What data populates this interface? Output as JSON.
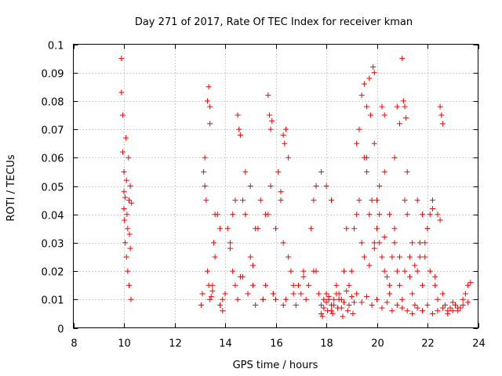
{
  "chart_data": {
    "type": "scatter",
    "title": "Day 271 of 2017, Rate Of TEC Index for receiver kman",
    "xlabel": "GPS time / hours",
    "ylabel": "ROTI / TECUs",
    "xlim": [
      8,
      24
    ],
    "ylim": [
      0,
      0.1
    ],
    "xticks": [
      "8",
      "10",
      "12",
      "14",
      "16",
      "18",
      "20",
      "22",
      "24"
    ],
    "yticks": [
      "0",
      "0.01",
      "0.02",
      "0.03",
      "0.04",
      "0.05",
      "0.06",
      "0.07",
      "0.08",
      "0.09",
      "0.1"
    ],
    "grid": true,
    "marker": "plus",
    "color": "#ff0000",
    "series": [
      {
        "x": [
          9.9,
          9.9,
          9.95,
          9.95,
          10,
          10,
          10,
          10.02,
          10.05,
          10.05,
          10.08,
          10.1,
          10.1,
          10.12,
          10.15,
          10.15,
          10.18,
          10.2,
          10.2,
          10.22,
          10.25,
          10.25,
          10.28,
          10.3,
          13.05,
          13.1,
          13.15,
          13.2,
          13.25,
          13.3,
          13.35,
          13.4,
          13.45,
          13.5,
          13.55,
          13.6,
          13.7,
          13.8,
          13.9,
          14.0,
          14.1,
          14.2,
          14.3,
          14.4,
          14.5,
          14.6,
          14.7,
          14.8,
          14.9,
          15.0,
          15.1,
          15.2,
          15.3,
          15.4,
          15.5,
          15.6,
          15.7,
          15.8,
          15.9,
          16.0,
          16.1,
          16.2,
          16.3,
          16.4,
          16.5,
          16.6,
          16.7,
          16.8,
          16.9,
          17.0,
          17.1,
          17.2,
          17.3,
          17.4,
          17.5,
          17.6,
          17.7,
          17.8,
          17.9,
          18.0,
          18.1,
          18.2,
          18.3,
          18.4,
          18.5,
          18.6,
          18.7,
          18.8,
          18.9,
          19.0,
          19.1,
          19.2,
          19.3,
          19.4,
          19.5,
          19.6,
          19.7,
          19.8,
          19.9,
          20.0,
          20.1,
          20.2,
          20.3,
          20.4,
          20.5,
          20.6,
          20.7,
          20.8,
          20.9,
          21.0,
          21.1,
          21.2,
          21.3,
          21.4,
          21.5,
          21.6,
          21.7,
          21.8,
          21.9,
          22.0,
          22.1,
          22.2,
          22.3,
          22.4,
          22.5,
          22.6,
          22.7,
          22.8,
          22.9,
          23.0,
          23.1,
          23.2,
          23.3,
          23.4,
          23.5,
          23.6,
          23.7,
          13.3,
          13.35,
          13.4,
          13.4,
          14.5,
          14.55,
          14.6,
          15.7,
          15.75,
          15.8,
          15.85,
          16.3,
          16.35,
          16.4,
          19.4,
          19.5,
          19.6,
          19.7,
          19.75,
          19.85,
          19.9,
          20.2,
          20.3,
          20.8,
          20.9,
          21.0,
          21.05,
          21.1,
          21.15,
          22.5,
          22.55,
          22.6,
          13.2,
          13.6,
          13.8,
          14.2,
          14.4,
          14.8,
          15.0,
          15.2,
          15.6,
          16.0,
          16.2,
          16.5,
          17.6,
          17.8,
          18.0,
          18.2,
          19.2,
          19.3,
          19.6,
          19.9,
          20.0,
          20.1,
          20.3,
          20.5,
          20.7,
          21.2,
          21.4,
          21.6,
          21.8,
          22.0,
          22.2,
          22.4,
          17.8,
          17.9,
          18.0,
          18.1,
          18.2,
          18.3,
          18.4,
          18.5,
          18.6,
          18.7,
          18.8,
          18.9,
          19.0,
          19.1,
          17.85,
          18.05,
          18.25,
          18.45,
          18.65,
          18.85,
          19.05,
          19.2,
          19.4,
          19.6,
          19.8,
          20.0,
          20.2,
          20.4,
          20.6,
          20.8,
          21.0,
          21.2,
          21.4,
          21.6,
          21.8,
          22.0,
          22.2,
          22.4,
          22.6,
          22.8,
          23.0,
          23.2,
          23.4,
          23.6,
          13.5,
          13.9,
          14.3,
          14.7,
          15.1,
          15.5,
          15.9,
          16.3,
          16.7,
          17.1,
          17.5,
          19.5,
          19.7,
          19.9,
          20.1,
          20.3,
          20.5,
          20.7,
          20.9,
          21.1,
          21.3,
          21.5,
          21.7,
          21.9,
          22.1,
          22.3
        ],
        "y": [
          0.095,
          0.083,
          0.075,
          0.062,
          0.055,
          0.048,
          0.042,
          0.038,
          0.046,
          0.03,
          0.067,
          0.025,
          0.052,
          0.04,
          0.02,
          0.035,
          0.06,
          0.045,
          0.015,
          0.033,
          0.05,
          0.028,
          0.01,
          0.044,
          0.008,
          0.012,
          0.055,
          0.06,
          0.045,
          0.02,
          0.015,
          0.01,
          0.011,
          0.013,
          0.03,
          0.025,
          0.04,
          0.008,
          0.006,
          0.012,
          0.035,
          0.028,
          0.04,
          0.015,
          0.01,
          0.018,
          0.045,
          0.055,
          0.012,
          0.025,
          0.015,
          0.008,
          0.035,
          0.045,
          0.01,
          0.015,
          0.04,
          0.05,
          0.012,
          0.01,
          0.055,
          0.048,
          0.03,
          0.01,
          0.025,
          0.02,
          0.012,
          0.008,
          0.015,
          0.012,
          0.02,
          0.01,
          0.015,
          0.035,
          0.045,
          0.02,
          0.012,
          0.008,
          0.01,
          0.012,
          0.01,
          0.008,
          0.01,
          0.015,
          0.012,
          0.01,
          0.02,
          0.035,
          0.015,
          0.02,
          0.035,
          0.04,
          0.045,
          0.03,
          0.06,
          0.055,
          0.04,
          0.045,
          0.03,
          0.035,
          0.04,
          0.025,
          0.032,
          0.018,
          0.012,
          0.025,
          0.035,
          0.02,
          0.015,
          0.01,
          0.045,
          0.04,
          0.025,
          0.012,
          0.008,
          0.02,
          0.025,
          0.015,
          0.03,
          0.035,
          0.04,
          0.045,
          0.015,
          0.01,
          0.038,
          0.012,
          0.008,
          0.006,
          0.007,
          0.009,
          0.008,
          0.006,
          0.007,
          0.01,
          0.012,
          0.015,
          0.016,
          0.08,
          0.085,
          0.078,
          0.072,
          0.075,
          0.07,
          0.068,
          0.082,
          0.075,
          0.07,
          0.073,
          0.068,
          0.065,
          0.07,
          0.082,
          0.086,
          0.078,
          0.088,
          0.075,
          0.092,
          0.09,
          0.078,
          0.075,
          0.078,
          0.072,
          0.095,
          0.08,
          0.078,
          0.074,
          0.078,
          0.075,
          0.072,
          0.05,
          0.04,
          0.035,
          0.03,
          0.045,
          0.04,
          0.05,
          0.035,
          0.04,
          0.035,
          0.045,
          0.06,
          0.05,
          0.055,
          0.05,
          0.045,
          0.065,
          0.07,
          0.06,
          0.065,
          0.045,
          0.05,
          0.055,
          0.04,
          0.06,
          0.055,
          0.03,
          0.045,
          0.04,
          0.035,
          0.042,
          0.04,
          0.005,
          0.007,
          0.009,
          0.011,
          0.006,
          0.008,
          0.012,
          0.01,
          0.007,
          0.009,
          0.013,
          0.008,
          0.011,
          0.009,
          0.004,
          0.006,
          0.005,
          0.007,
          0.004,
          0.006,
          0.005,
          0.012,
          0.009,
          0.011,
          0.008,
          0.01,
          0.007,
          0.009,
          0.006,
          0.008,
          0.007,
          0.006,
          0.005,
          0.007,
          0.006,
          0.008,
          0.005,
          0.006,
          0.007,
          0.005,
          0.006,
          0.007,
          0.008,
          0.009,
          0.015,
          0.01,
          0.02,
          0.018,
          0.022,
          0.01,
          0.012,
          0.008,
          0.015,
          0.018,
          0.02,
          0.025,
          0.022,
          0.028,
          0.03,
          0.02,
          0.015,
          0.03,
          0.025,
          0.02,
          0.018,
          0.022,
          0.03,
          0.025,
          0.02,
          0.018
        ]
      }
    ]
  }
}
